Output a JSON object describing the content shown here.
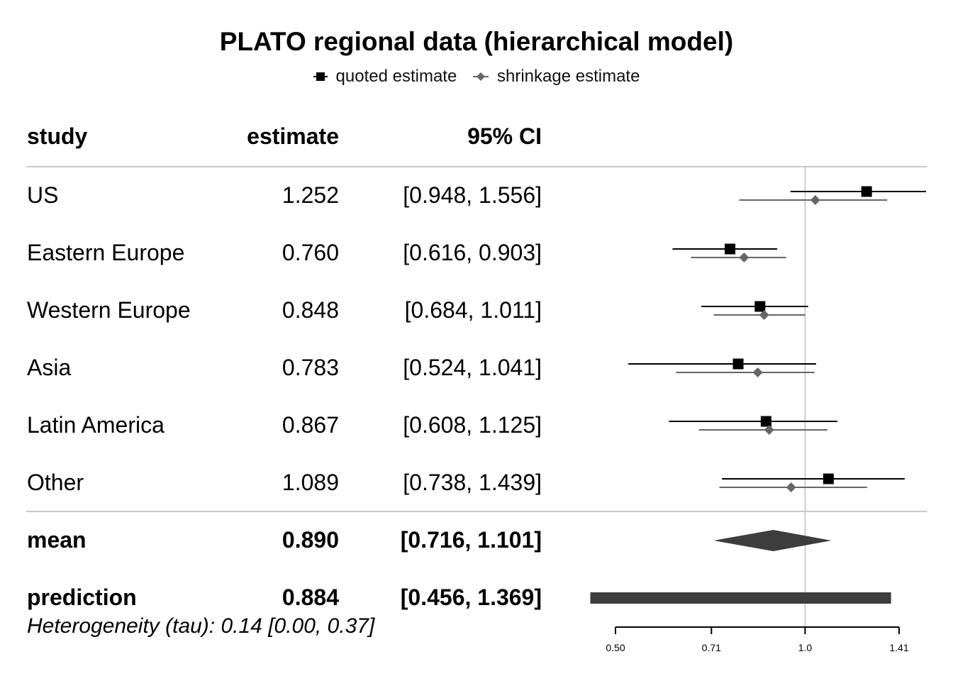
{
  "chart_data": {
    "type": "forest",
    "title": "PLATO regional data (hierarchical model)",
    "legend": {
      "placement": "top-center",
      "entries": [
        {
          "label": "quoted estimate",
          "marker": "square",
          "color": "#000000"
        },
        {
          "label": "shrinkage estimate",
          "marker": "diamond",
          "color": "#666666"
        }
      ]
    },
    "columns": [
      "study",
      "estimate",
      "95% CI"
    ],
    "x_scale": "log",
    "xlim": [
      0.5,
      1.41
    ],
    "x_ticks": [
      0.5,
      0.71,
      1.0,
      1.41
    ],
    "x_tick_labels": [
      "0.50",
      "0.71",
      "1.0",
      "1.41"
    ],
    "reference_line": 1.0,
    "studies": [
      {
        "label": "US",
        "estimate_text": "1.252",
        "ci_text": "[0.948, 1.556]",
        "quoted": {
          "est": 1.252,
          "lo": 0.948,
          "hi": 1.556
        },
        "shrinkage": {
          "est": 1.038,
          "lo": 0.786,
          "hi": 1.35
        }
      },
      {
        "label": "Eastern Europe",
        "estimate_text": "0.760",
        "ci_text": "[0.616, 0.903]",
        "quoted": {
          "est": 0.76,
          "lo": 0.616,
          "hi": 0.903
        },
        "shrinkage": {
          "est": 0.8,
          "lo": 0.659,
          "hi": 0.933
        }
      },
      {
        "label": "Western Europe",
        "estimate_text": "0.848",
        "ci_text": "[0.684, 1.011]",
        "quoted": {
          "est": 0.848,
          "lo": 0.684,
          "hi": 1.011
        },
        "shrinkage": {
          "est": 0.861,
          "lo": 0.716,
          "hi": 1.0
        }
      },
      {
        "label": "Asia",
        "estimate_text": "0.783",
        "ci_text": "[0.524, 1.041]",
        "quoted": {
          "est": 0.783,
          "lo": 0.524,
          "hi": 1.041
        },
        "shrinkage": {
          "est": 0.841,
          "lo": 0.624,
          "hi": 1.035
        }
      },
      {
        "label": "Latin America",
        "estimate_text": "0.867",
        "ci_text": "[0.608, 1.125]",
        "quoted": {
          "est": 0.867,
          "lo": 0.608,
          "hi": 1.125
        },
        "shrinkage": {
          "est": 0.877,
          "lo": 0.678,
          "hi": 1.085
        }
      },
      {
        "label": "Other",
        "estimate_text": "1.089",
        "ci_text": "[0.738, 1.439]",
        "quoted": {
          "est": 1.089,
          "lo": 0.738,
          "hi": 1.439
        },
        "shrinkage": {
          "est": 0.95,
          "lo": 0.731,
          "hi": 1.254
        }
      }
    ],
    "summary": [
      {
        "label": "mean",
        "estimate_text": "0.890",
        "ci_text": "[0.716, 1.101]",
        "est": 0.89,
        "lo": 0.716,
        "hi": 1.101,
        "shape": "diamond"
      },
      {
        "label": "prediction",
        "estimate_text": "0.884",
        "ci_text": "[0.456, 1.369]",
        "est": 0.884,
        "lo": 0.456,
        "hi": 1.369,
        "shape": "bar"
      }
    ],
    "footnote": "Heterogeneity (tau): 0.14 [0.00, 0.37]",
    "colors": {
      "quoted": "#000000",
      "shrinkage": "#666666",
      "summary": "#3d3d3d",
      "rule": "#c8c8c8"
    }
  }
}
